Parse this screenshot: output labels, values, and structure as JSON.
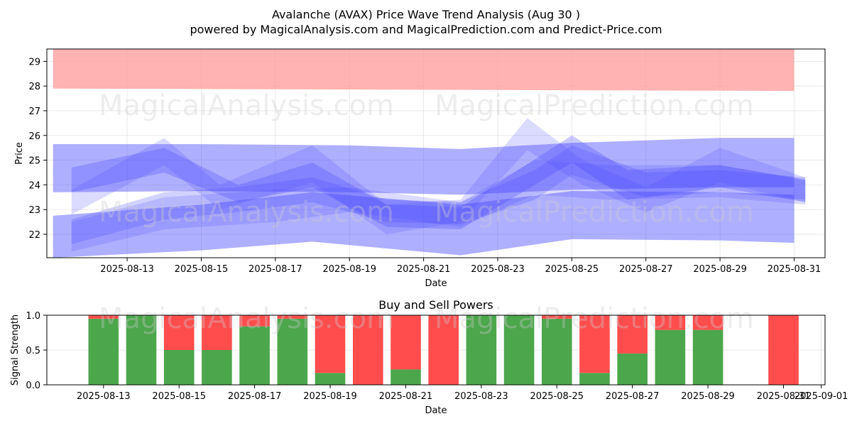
{
  "title_line1": "Avalanche (AVAX) Price Wave Trend Analysis (Aug 30 )",
  "title_line2": "powered by MagicalAnalysis.com and MagicalPrediction.com and Predict-Price.com",
  "watermarks": [
    "MagicalAnalysis.com",
    "MagicalPrediction.com"
  ],
  "colors": {
    "resistance": "#ff9999",
    "wave": "#4d4dff",
    "buy": "#4ca64c",
    "sell": "#ff4d4d",
    "grid": "#b0b0b0"
  },
  "chart_data": [
    {
      "type": "area",
      "title": "",
      "xlabel": "Date",
      "ylabel": "Price",
      "xlim": [
        "2025-08-10T20:00",
        "2025-08-31T20:00"
      ],
      "ylim": [
        21.05,
        29.5
      ],
      "x_ticks": [
        "2025-08-13",
        "2025-08-15",
        "2025-08-17",
        "2025-08-19",
        "2025-08-21",
        "2025-08-23",
        "2025-08-25",
        "2025-08-27",
        "2025-08-29",
        "2025-08-31"
      ],
      "y_ticks": [
        22,
        23,
        24,
        25,
        26,
        27,
        28,
        29
      ],
      "grid": true,
      "bands": [
        {
          "name": "",
          "color": "#ff9999",
          "opacity": 0.75,
          "x": [
            "2025-08-11",
            "2025-08-31"
          ],
          "lower": [
            27.9,
            27.8
          ],
          "upper": [
            29.5,
            29.5
          ]
        },
        {
          "name": "",
          "color": "#4d4dff",
          "opacity": 0.45,
          "x": [
            "2025-08-11",
            "2025-08-15",
            "2025-08-19",
            "2025-08-22",
            "2025-08-25",
            "2025-08-29",
            "2025-08-31"
          ],
          "lower": [
            23.7,
            23.75,
            23.7,
            23.6,
            23.8,
            23.9,
            23.9
          ],
          "upper": [
            25.65,
            25.65,
            25.6,
            25.45,
            25.7,
            25.9,
            25.9
          ]
        },
        {
          "name": "",
          "color": "#4d4dff",
          "opacity": 0.45,
          "x": [
            "2025-08-11",
            "2025-08-15",
            "2025-08-18",
            "2025-08-22",
            "2025-08-25",
            "2025-08-29",
            "2025-08-31"
          ],
          "lower": [
            21.05,
            21.35,
            21.7,
            21.15,
            21.8,
            21.75,
            21.65
          ],
          "upper": [
            22.75,
            23.2,
            23.7,
            23.2,
            23.75,
            23.7,
            23.6
          ]
        },
        {
          "name": "",
          "color": "#4d4dff",
          "opacity": 0.3,
          "x": [
            "2025-08-11.5",
            "2025-08-14",
            "2025-08-16",
            "2025-08-18",
            "2025-08-20",
            "2025-08-22",
            "2025-08-25",
            "2025-08-26.5",
            "2025-08-29",
            "2025-08-31.3"
          ],
          "lower": [
            23.7,
            24.5,
            23.3,
            23.9,
            22.3,
            22.2,
            24.9,
            23.4,
            23.9,
            23.3
          ],
          "upper": [
            24.7,
            25.5,
            24.0,
            24.9,
            23.2,
            23.1,
            26.0,
            24.6,
            24.8,
            24.2
          ]
        },
        {
          "name": "",
          "color": "#4d4dff",
          "opacity": 0.25,
          "x": [
            "2025-08-11.5",
            "2025-08-14",
            "2025-08-16",
            "2025-08-18",
            "2025-08-20",
            "2025-08-22",
            "2025-08-24",
            "2025-08-25",
            "2025-08-27",
            "2025-08-29",
            "2025-08-31.3"
          ],
          "lower": [
            21.6,
            22.6,
            22.9,
            23.3,
            22.5,
            22.4,
            23.4,
            24.4,
            23.5,
            23.7,
            23.4
          ],
          "upper": [
            22.6,
            23.7,
            23.9,
            24.3,
            23.4,
            23.3,
            24.6,
            25.6,
            24.5,
            24.6,
            24.3
          ]
        },
        {
          "name": "",
          "color": "#4d4dff",
          "opacity": 0.2,
          "x": [
            "2025-08-11.5",
            "2025-08-14",
            "2025-08-15.5",
            "2025-08-18",
            "2025-08-20",
            "2025-08-22",
            "2025-08-23.8",
            "2025-08-25.3",
            "2025-08-27",
            "2025-08-29",
            "2025-08-31.3"
          ],
          "lower": [
            22.8,
            24.8,
            23.0,
            24.1,
            22.0,
            22.5,
            25.4,
            24.0,
            22.9,
            24.1,
            23.3
          ],
          "upper": [
            23.8,
            25.9,
            24.0,
            25.6,
            23.2,
            23.4,
            26.7,
            25.0,
            23.9,
            25.5,
            24.3
          ]
        },
        {
          "name": "",
          "color": "#4d4dff",
          "opacity": 0.2,
          "x": [
            "2025-08-11.5",
            "2025-08-14",
            "2025-08-17",
            "2025-08-19",
            "2025-08-22",
            "2025-08-24",
            "2025-08-26",
            "2025-08-29",
            "2025-08-31.3"
          ],
          "lower": [
            21.3,
            22.2,
            22.5,
            22.9,
            22.3,
            23.6,
            23.4,
            23.5,
            23.2
          ],
          "upper": [
            22.5,
            23.5,
            23.8,
            23.9,
            23.3,
            25.0,
            24.8,
            24.8,
            24.2
          ]
        }
      ]
    },
    {
      "type": "bar",
      "title": "Buy and Sell Powers",
      "xlabel": "Date",
      "ylabel": "Signal Strength",
      "ylim": [
        0,
        1
      ],
      "xlim": [
        "2025-08-11.5",
        "2025-09-01.1"
      ],
      "x_ticks": [
        "2025-08-13",
        "2025-08-15",
        "2025-08-17",
        "2025-08-19",
        "2025-08-21",
        "2025-08-23",
        "2025-08-25",
        "2025-08-27",
        "2025-08-29",
        "2025-08-31",
        "2025-09-01"
      ],
      "y_ticks": [
        "0.0",
        "0.5",
        "1.0"
      ],
      "grid": true,
      "categories": [
        "2025-08-13",
        "2025-08-14",
        "2025-08-15",
        "2025-08-16",
        "2025-08-17",
        "2025-08-18",
        "2025-08-19",
        "2025-08-20",
        "2025-08-21",
        "2025-08-22",
        "2025-08-23",
        "2025-08-24",
        "2025-08-25",
        "2025-08-26",
        "2025-08-27",
        "2025-08-28",
        "2025-08-29",
        "2025-08-31"
      ],
      "series": [
        {
          "name": "",
          "color": "#4ca64c",
          "values": [
            0.95,
            1.0,
            0.5,
            0.5,
            0.84,
            0.95,
            0.17,
            0.0,
            0.22,
            0.0,
            1.0,
            1.0,
            0.95,
            0.17,
            0.45,
            0.79,
            0.79,
            0.0
          ]
        },
        {
          "name": "",
          "color": "#ff4d4d",
          "values": [
            0.05,
            0.0,
            0.5,
            0.5,
            0.16,
            0.05,
            0.83,
            1.0,
            0.78,
            1.0,
            0.0,
            0.0,
            0.05,
            0.83,
            0.55,
            0.21,
            0.21,
            1.0
          ]
        }
      ]
    }
  ]
}
